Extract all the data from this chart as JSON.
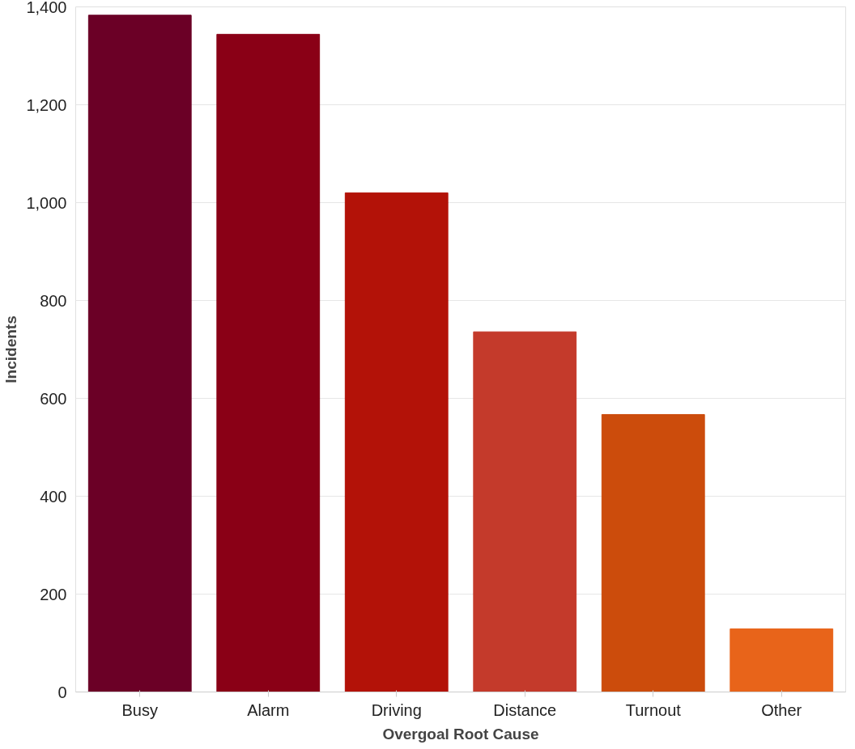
{
  "chart_data": {
    "type": "bar",
    "xlabel": "Overgoal Root Cause",
    "ylabel": "Incidents",
    "categories": [
      "Busy",
      "Alarm",
      "Driving",
      "Distance",
      "Turnout",
      "Other"
    ],
    "values": [
      1383,
      1344,
      1020,
      736,
      567,
      129
    ],
    "colors": [
      "#6b0026",
      "#8a0016",
      "#b31208",
      "#c43a2b",
      "#cc4c0c",
      "#e8641a"
    ],
    "ylim": [
      0,
      1400
    ],
    "yticks": [
      {
        "value": 0,
        "label": "0"
      },
      {
        "value": 200,
        "label": "200"
      },
      {
        "value": 400,
        "label": "400"
      },
      {
        "value": 600,
        "label": "600"
      },
      {
        "value": 800,
        "label": "800"
      },
      {
        "value": 1000,
        "label": "1,000"
      },
      {
        "value": 1200,
        "label": "1,200"
      },
      {
        "value": 1400,
        "label": "1,400"
      }
    ],
    "grid": "y"
  }
}
